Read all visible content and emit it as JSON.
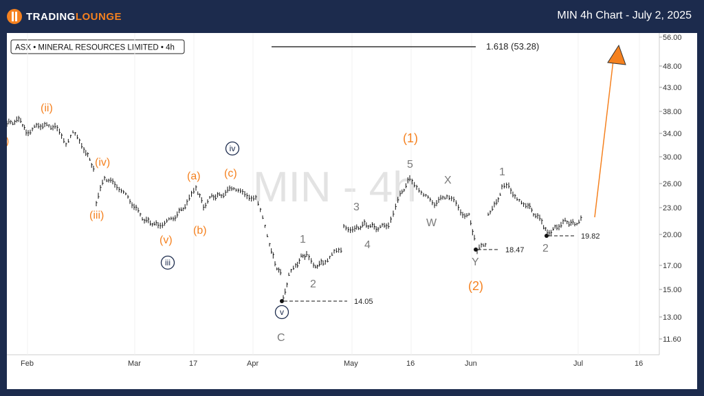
{
  "header": {
    "logo_text_a": "TRADING",
    "logo_text_b": "LOUNGE",
    "title": "MIN 4h Chart - July 2, 2025"
  },
  "chart_data": {
    "type": "ohlc",
    "instrument_label": "ASX • MINERAL RESOURCES LIMITED • 4h",
    "watermark": "MIN - 4h",
    "y_ticks": [
      "56.00",
      "48.00",
      "43.00",
      "38.00",
      "34.00",
      "30.00",
      "26.00",
      "23.00",
      "20.00",
      "17.00",
      "15.00",
      "13.00",
      "11.60"
    ],
    "x_ticks": [
      "Feb",
      "Mar",
      "17",
      "Apr",
      "May",
      "16",
      "Jun",
      "Jul",
      "16"
    ],
    "fib_label": "1.618 (53.28)",
    "price_levels": [
      {
        "label": "14.05",
        "value": 14.05
      },
      {
        "label": "18.47",
        "value": 18.47
      },
      {
        "label": "19.82",
        "value": 19.82
      }
    ],
    "wave_labels": {
      "orange": [
        "(ii)",
        "(iv)",
        "(iii)",
        "(v)",
        "(a)",
        "(b)",
        "(c)",
        "(1)",
        "(2)",
        ")"
      ],
      "navy_circled": [
        "iv",
        "iii",
        "v"
      ],
      "gray": [
        "C",
        "1",
        "2",
        "3",
        "4",
        "5",
        "W",
        "X",
        "Y",
        "1",
        "2"
      ]
    },
    "colors": {
      "orange": "#f5811f",
      "navy": "#1c2b4d",
      "gray": "#7a7a7a",
      "background": "#ffffff"
    }
  }
}
